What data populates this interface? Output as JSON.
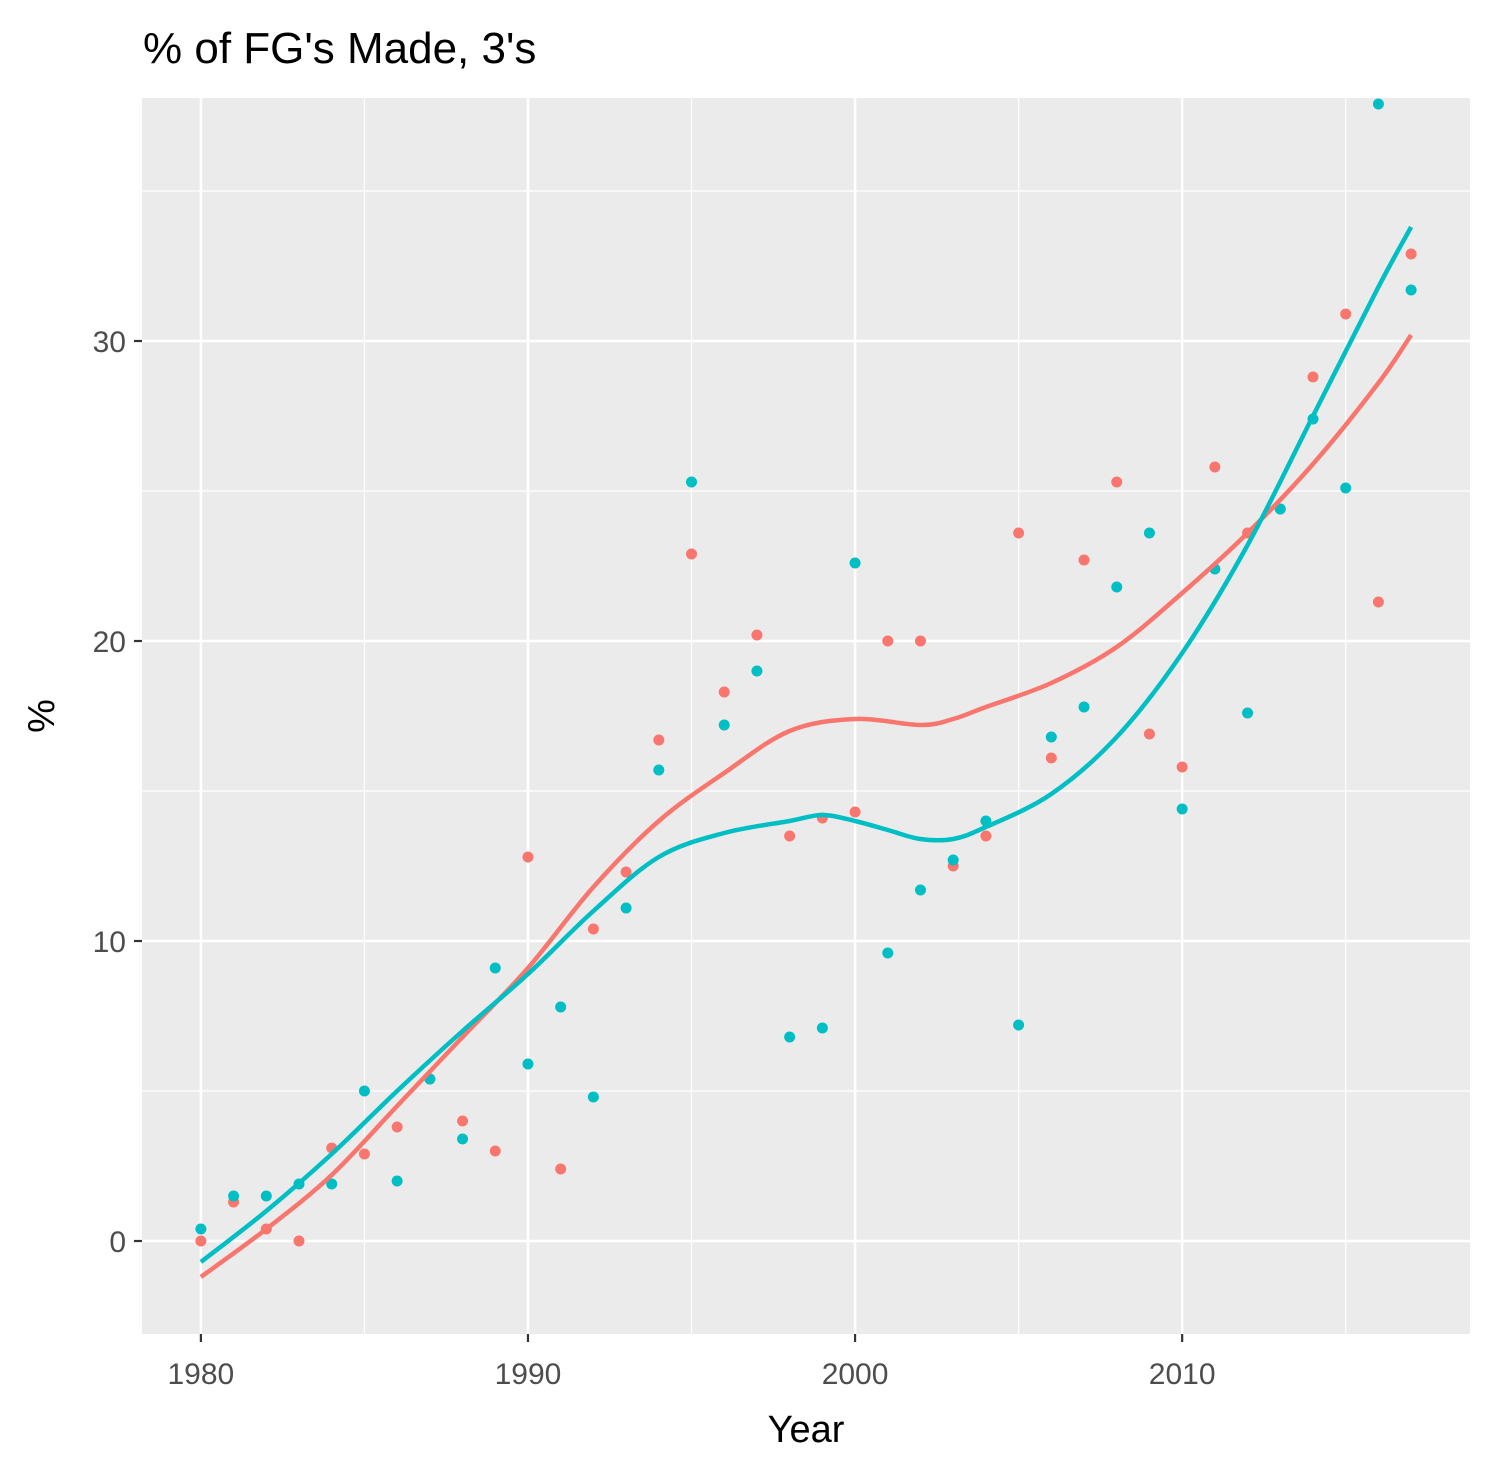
{
  "chart_data": {
    "type": "scatter",
    "title": "% of FG's Made, 3's",
    "xlabel": "Year",
    "ylabel": "%",
    "xlim": [
      1978.2,
      2018.8
    ],
    "ylim": [
      -3.1,
      38.1
    ],
    "x_ticks": [
      1980,
      1990,
      2000,
      2010
    ],
    "y_ticks": [
      0,
      10,
      20,
      30
    ],
    "grid": true,
    "legend": "none",
    "series": [
      {
        "color": "#F8766D",
        "points": [
          [
            1980,
            0.0
          ],
          [
            1981,
            1.3
          ],
          [
            1982,
            0.4
          ],
          [
            1983,
            0.0
          ],
          [
            1984,
            3.1
          ],
          [
            1985,
            2.9
          ],
          [
            1986,
            3.8
          ],
          [
            1987,
            5.4
          ],
          [
            1988,
            4.0
          ],
          [
            1989,
            3.0
          ],
          [
            1990,
            12.8
          ],
          [
            1991,
            2.4
          ],
          [
            1992,
            10.4
          ],
          [
            1993,
            12.3
          ],
          [
            1994,
            16.7
          ],
          [
            1995,
            22.9
          ],
          [
            1996,
            18.3
          ],
          [
            1997,
            20.2
          ],
          [
            1998,
            13.5
          ],
          [
            1999,
            14.1
          ],
          [
            2000,
            14.3
          ],
          [
            2001,
            20.0
          ],
          [
            2002,
            20.0
          ],
          [
            2003,
            12.5
          ],
          [
            2004,
            13.5
          ],
          [
            2005,
            23.6
          ],
          [
            2006,
            16.1
          ],
          [
            2007,
            22.7
          ],
          [
            2008,
            25.3
          ],
          [
            2009,
            16.9
          ],
          [
            2010,
            15.8
          ],
          [
            2011,
            25.8
          ],
          [
            2012,
            23.6
          ],
          [
            2013,
            24.4
          ],
          [
            2014,
            28.8
          ],
          [
            2015,
            30.9
          ],
          [
            2016,
            21.3
          ],
          [
            2017,
            32.9
          ]
        ],
        "smooth": [
          [
            1980,
            -1.2
          ],
          [
            1982,
            0.4
          ],
          [
            1984,
            2.2
          ],
          [
            1986,
            4.5
          ],
          [
            1988,
            6.8
          ],
          [
            1990,
            9.1
          ],
          [
            1992,
            11.8
          ],
          [
            1994,
            14.0
          ],
          [
            1996,
            15.6
          ],
          [
            1998,
            17.0
          ],
          [
            2000,
            17.4
          ],
          [
            2002,
            17.2
          ],
          [
            2003,
            17.4
          ],
          [
            2004,
            17.8
          ],
          [
            2006,
            18.6
          ],
          [
            2008,
            19.8
          ],
          [
            2010,
            21.6
          ],
          [
            2012,
            23.6
          ],
          [
            2014,
            25.9
          ],
          [
            2016,
            28.6
          ],
          [
            2017,
            30.2
          ]
        ]
      },
      {
        "color": "#00BFC4",
        "points": [
          [
            1980,
            0.4
          ],
          [
            1981,
            1.5
          ],
          [
            1982,
            1.5
          ],
          [
            1983,
            1.9
          ],
          [
            1984,
            1.9
          ],
          [
            1985,
            5.0
          ],
          [
            1986,
            2.0
          ],
          [
            1987,
            5.4
          ],
          [
            1988,
            3.4
          ],
          [
            1989,
            9.1
          ],
          [
            1990,
            5.9
          ],
          [
            1991,
            7.8
          ],
          [
            1992,
            4.8
          ],
          [
            1993,
            11.1
          ],
          [
            1994,
            15.7
          ],
          [
            1995,
            25.3
          ],
          [
            1996,
            17.2
          ],
          [
            1997,
            19.0
          ],
          [
            1998,
            6.8
          ],
          [
            1999,
            7.1
          ],
          [
            2000,
            22.6
          ],
          [
            2001,
            9.6
          ],
          [
            2002,
            11.7
          ],
          [
            2003,
            12.7
          ],
          [
            2004,
            14.0
          ],
          [
            2005,
            7.2
          ],
          [
            2006,
            16.8
          ],
          [
            2007,
            17.8
          ],
          [
            2008,
            21.8
          ],
          [
            2009,
            23.6
          ],
          [
            2010,
            14.4
          ],
          [
            2011,
            22.4
          ],
          [
            2012,
            17.6
          ],
          [
            2013,
            24.4
          ],
          [
            2014,
            27.4
          ],
          [
            2015,
            25.1
          ],
          [
            2016,
            37.9
          ],
          [
            2017,
            31.7
          ]
        ],
        "smooth": [
          [
            1980,
            -0.7
          ],
          [
            1982,
            1.0
          ],
          [
            1984,
            2.9
          ],
          [
            1986,
            5.0
          ],
          [
            1988,
            7.0
          ],
          [
            1990,
            8.9
          ],
          [
            1992,
            11.0
          ],
          [
            1994,
            12.8
          ],
          [
            1996,
            13.6
          ],
          [
            1998,
            14.0
          ],
          [
            1999,
            14.2
          ],
          [
            2000,
            14.0
          ],
          [
            2001,
            13.7
          ],
          [
            2002,
            13.4
          ],
          [
            2003,
            13.4
          ],
          [
            2004,
            13.8
          ],
          [
            2006,
            14.9
          ],
          [
            2008,
            16.8
          ],
          [
            2010,
            19.6
          ],
          [
            2012,
            23.2
          ],
          [
            2014,
            27.5
          ],
          [
            2016,
            31.8
          ],
          [
            2017,
            33.8
          ]
        ]
      }
    ]
  }
}
